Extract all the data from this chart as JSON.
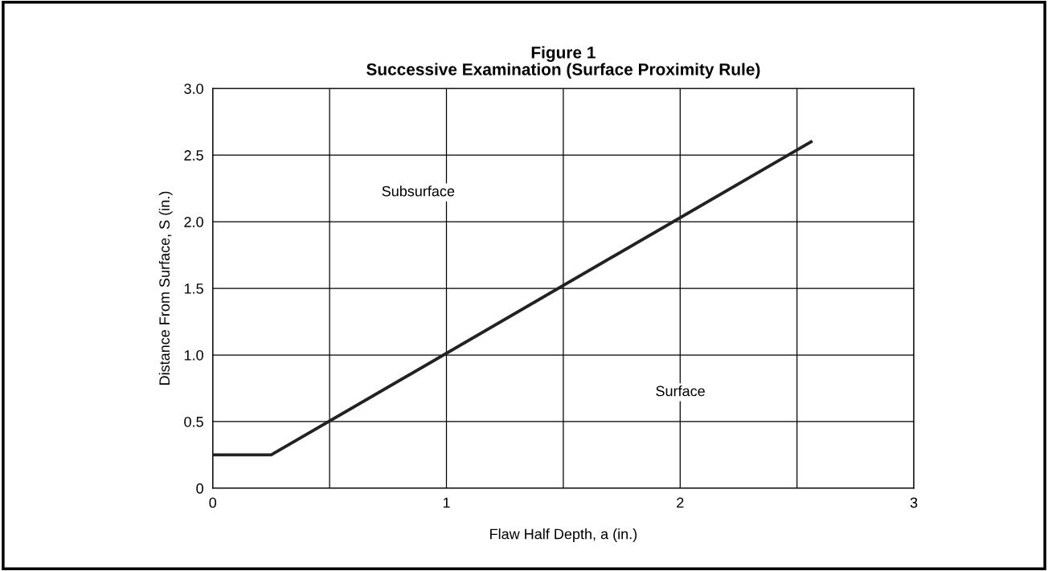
{
  "chart_data": {
    "type": "line",
    "title": "Figure 1\nSuccessive Examination (Surface Proximity Rule)",
    "xlabel": "Flaw Half Depth, a (in.)",
    "ylabel": "Distance From Surface, S (in.)",
    "x": [
      0,
      0.25,
      2.56
    ],
    "series": [
      {
        "color": "#222222",
        "values": [
          0.25,
          0.25,
          2.6
        ]
      }
    ],
    "xlim": [
      0,
      3
    ],
    "ylim": [
      0,
      3
    ],
    "xticks": [
      0,
      {
        "value": 0.5,
        "label": null
      },
      1,
      {
        "value": 1.5,
        "label": null
      },
      2,
      {
        "value": 2.5,
        "label": null
      },
      3
    ],
    "yticks": [
      0,
      0.5,
      {
        "value": 1,
        "label": "1.0"
      },
      1.5,
      {
        "value": 2,
        "label": "2.0"
      },
      2.5,
      {
        "value": 3,
        "label": "3.0"
      }
    ],
    "grid": true,
    "legend": false,
    "marker": "none",
    "line_style": "solid",
    "annotations": [
      "Subsurface",
      "Surface"
    ]
  }
}
